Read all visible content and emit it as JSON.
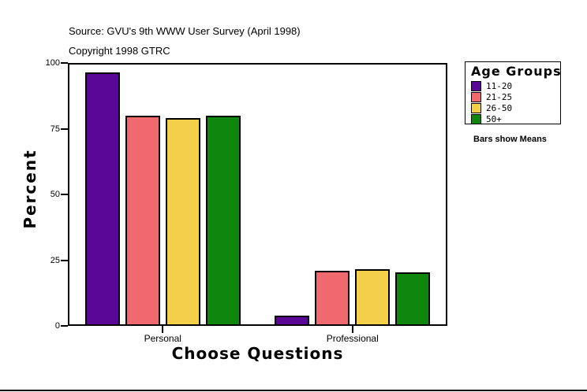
{
  "header": {
    "source": "Source: GVU's 9th WWW User Survey (April 1998)",
    "copyright": "Copyright 1998 GTRC"
  },
  "chart_data": {
    "type": "bar",
    "title": "",
    "xlabel": "Choose Questions",
    "ylabel": "Percent",
    "categories": [
      "Personal",
      "Professional"
    ],
    "series": [
      {
        "name": "11-20",
        "color": "#5A0795",
        "values": [
          96.5,
          4
        ]
      },
      {
        "name": "21-25",
        "color": "#F0696E",
        "values": [
          80,
          21
        ]
      },
      {
        "name": "26-50",
        "color": "#F4D04A",
        "values": [
          79,
          21.5
        ]
      },
      {
        "name": "50+",
        "color": "#0F870F",
        "values": [
          80,
          20.5
        ]
      }
    ],
    "ylim": [
      0,
      100
    ],
    "y_ticks": [
      0,
      25,
      50,
      75,
      100
    ],
    "grid": false,
    "legend": {
      "title": "Age Groups",
      "position": "right",
      "note": "Bars show Means"
    }
  },
  "colors": {
    "axis": "#000000",
    "background": "#FFFFFF"
  }
}
